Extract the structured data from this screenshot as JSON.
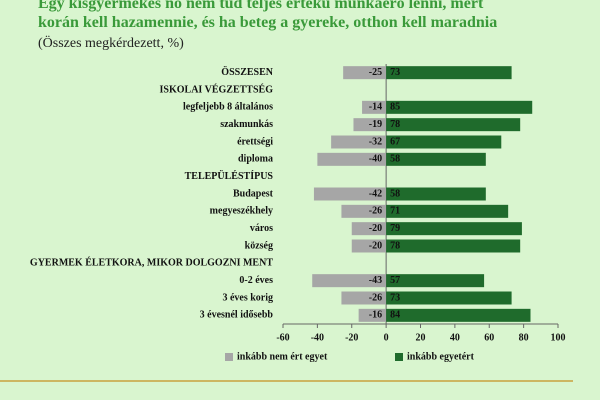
{
  "chart_data": {
    "type": "diverging-bar",
    "title": "Egy kisgyermekes nő nem tud teljes értékű munkaerő lenni, mert korán kell hazamennie, és ha beteg a gyereke, otthon kell maradnia",
    "subtitle": "(Összes megkérdezett, %)",
    "categories": [
      "ÖSSZESEN",
      "ISKOLAI VÉGZETTSÉG",
      "legfeljebb 8 általános",
      "szakmunkás",
      "érettségi",
      "diploma",
      "TELEPÜLÉSTÍPUS",
      "Budapest",
      "megyeszékhely",
      "város",
      "község",
      "GYERMEK ÉLETKORA, MIKOR DOLGOZNI MENT",
      "0-2 éves",
      "3 éves korig",
      "3 évesnél idősebb"
    ],
    "series": [
      {
        "name": "inkább nem ért egyet",
        "color": "#a6a6a6",
        "values": [
          -25,
          null,
          -14,
          -19,
          -32,
          -40,
          null,
          -42,
          -26,
          -20,
          -20,
          null,
          -43,
          -26,
          -16
        ]
      },
      {
        "name": "inkább egyetért",
        "color": "#1f6b2c",
        "values": [
          73,
          null,
          85,
          78,
          67,
          58,
          null,
          58,
          71,
          79,
          78,
          null,
          57,
          73,
          84
        ]
      }
    ],
    "xlim": [
      -60,
      100
    ],
    "xticks": [
      -60,
      -40,
      -20,
      0,
      20,
      40,
      60,
      80,
      100
    ]
  }
}
